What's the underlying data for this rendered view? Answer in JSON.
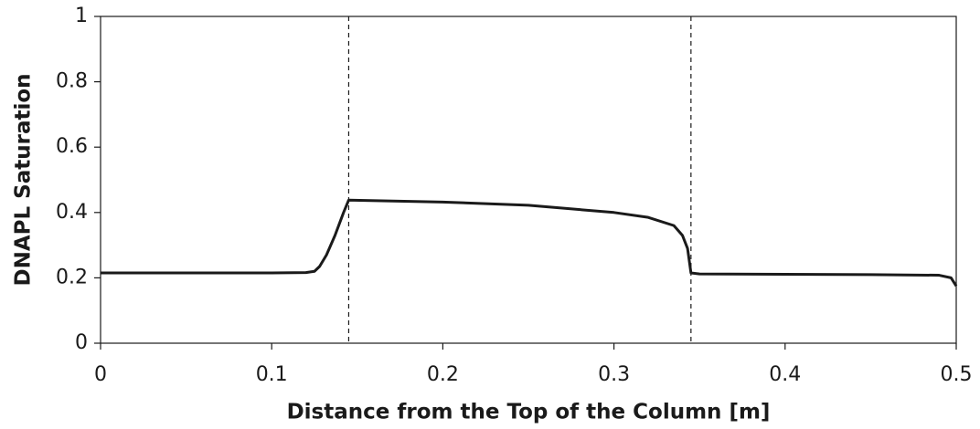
{
  "chart_data": {
    "type": "line",
    "x_label": "Distance from the Top of the Column [m]",
    "y_label": "DNAPL Saturation",
    "x": [
      0,
      0.05,
      0.1,
      0.12,
      0.125,
      0.128,
      0.132,
      0.137,
      0.142,
      0.145,
      0.2,
      0.25,
      0.3,
      0.32,
      0.335,
      0.34,
      0.343,
      0.345,
      0.35,
      0.4,
      0.45,
      0.49,
      0.497,
      0.5
    ],
    "series": [
      {
        "name": "DNAPL Saturation",
        "color": "#1a1a1a",
        "values": [
          0.215,
          0.215,
          0.215,
          0.216,
          0.22,
          0.235,
          0.27,
          0.33,
          0.4,
          0.438,
          0.432,
          0.422,
          0.4,
          0.385,
          0.36,
          0.33,
          0.29,
          0.215,
          0.212,
          0.211,
          0.21,
          0.208,
          0.2,
          0.175
        ]
      }
    ],
    "vlines": [
      0.145,
      0.345
    ],
    "xlim": [
      0,
      0.5
    ],
    "xticks": [
      0,
      0.1,
      0.2,
      0.3,
      0.4,
      0.5
    ],
    "ylim": [
      0,
      1
    ],
    "yticks": [
      0,
      0.2,
      0.4,
      0.6,
      0.8,
      1
    ],
    "grid": false
  }
}
